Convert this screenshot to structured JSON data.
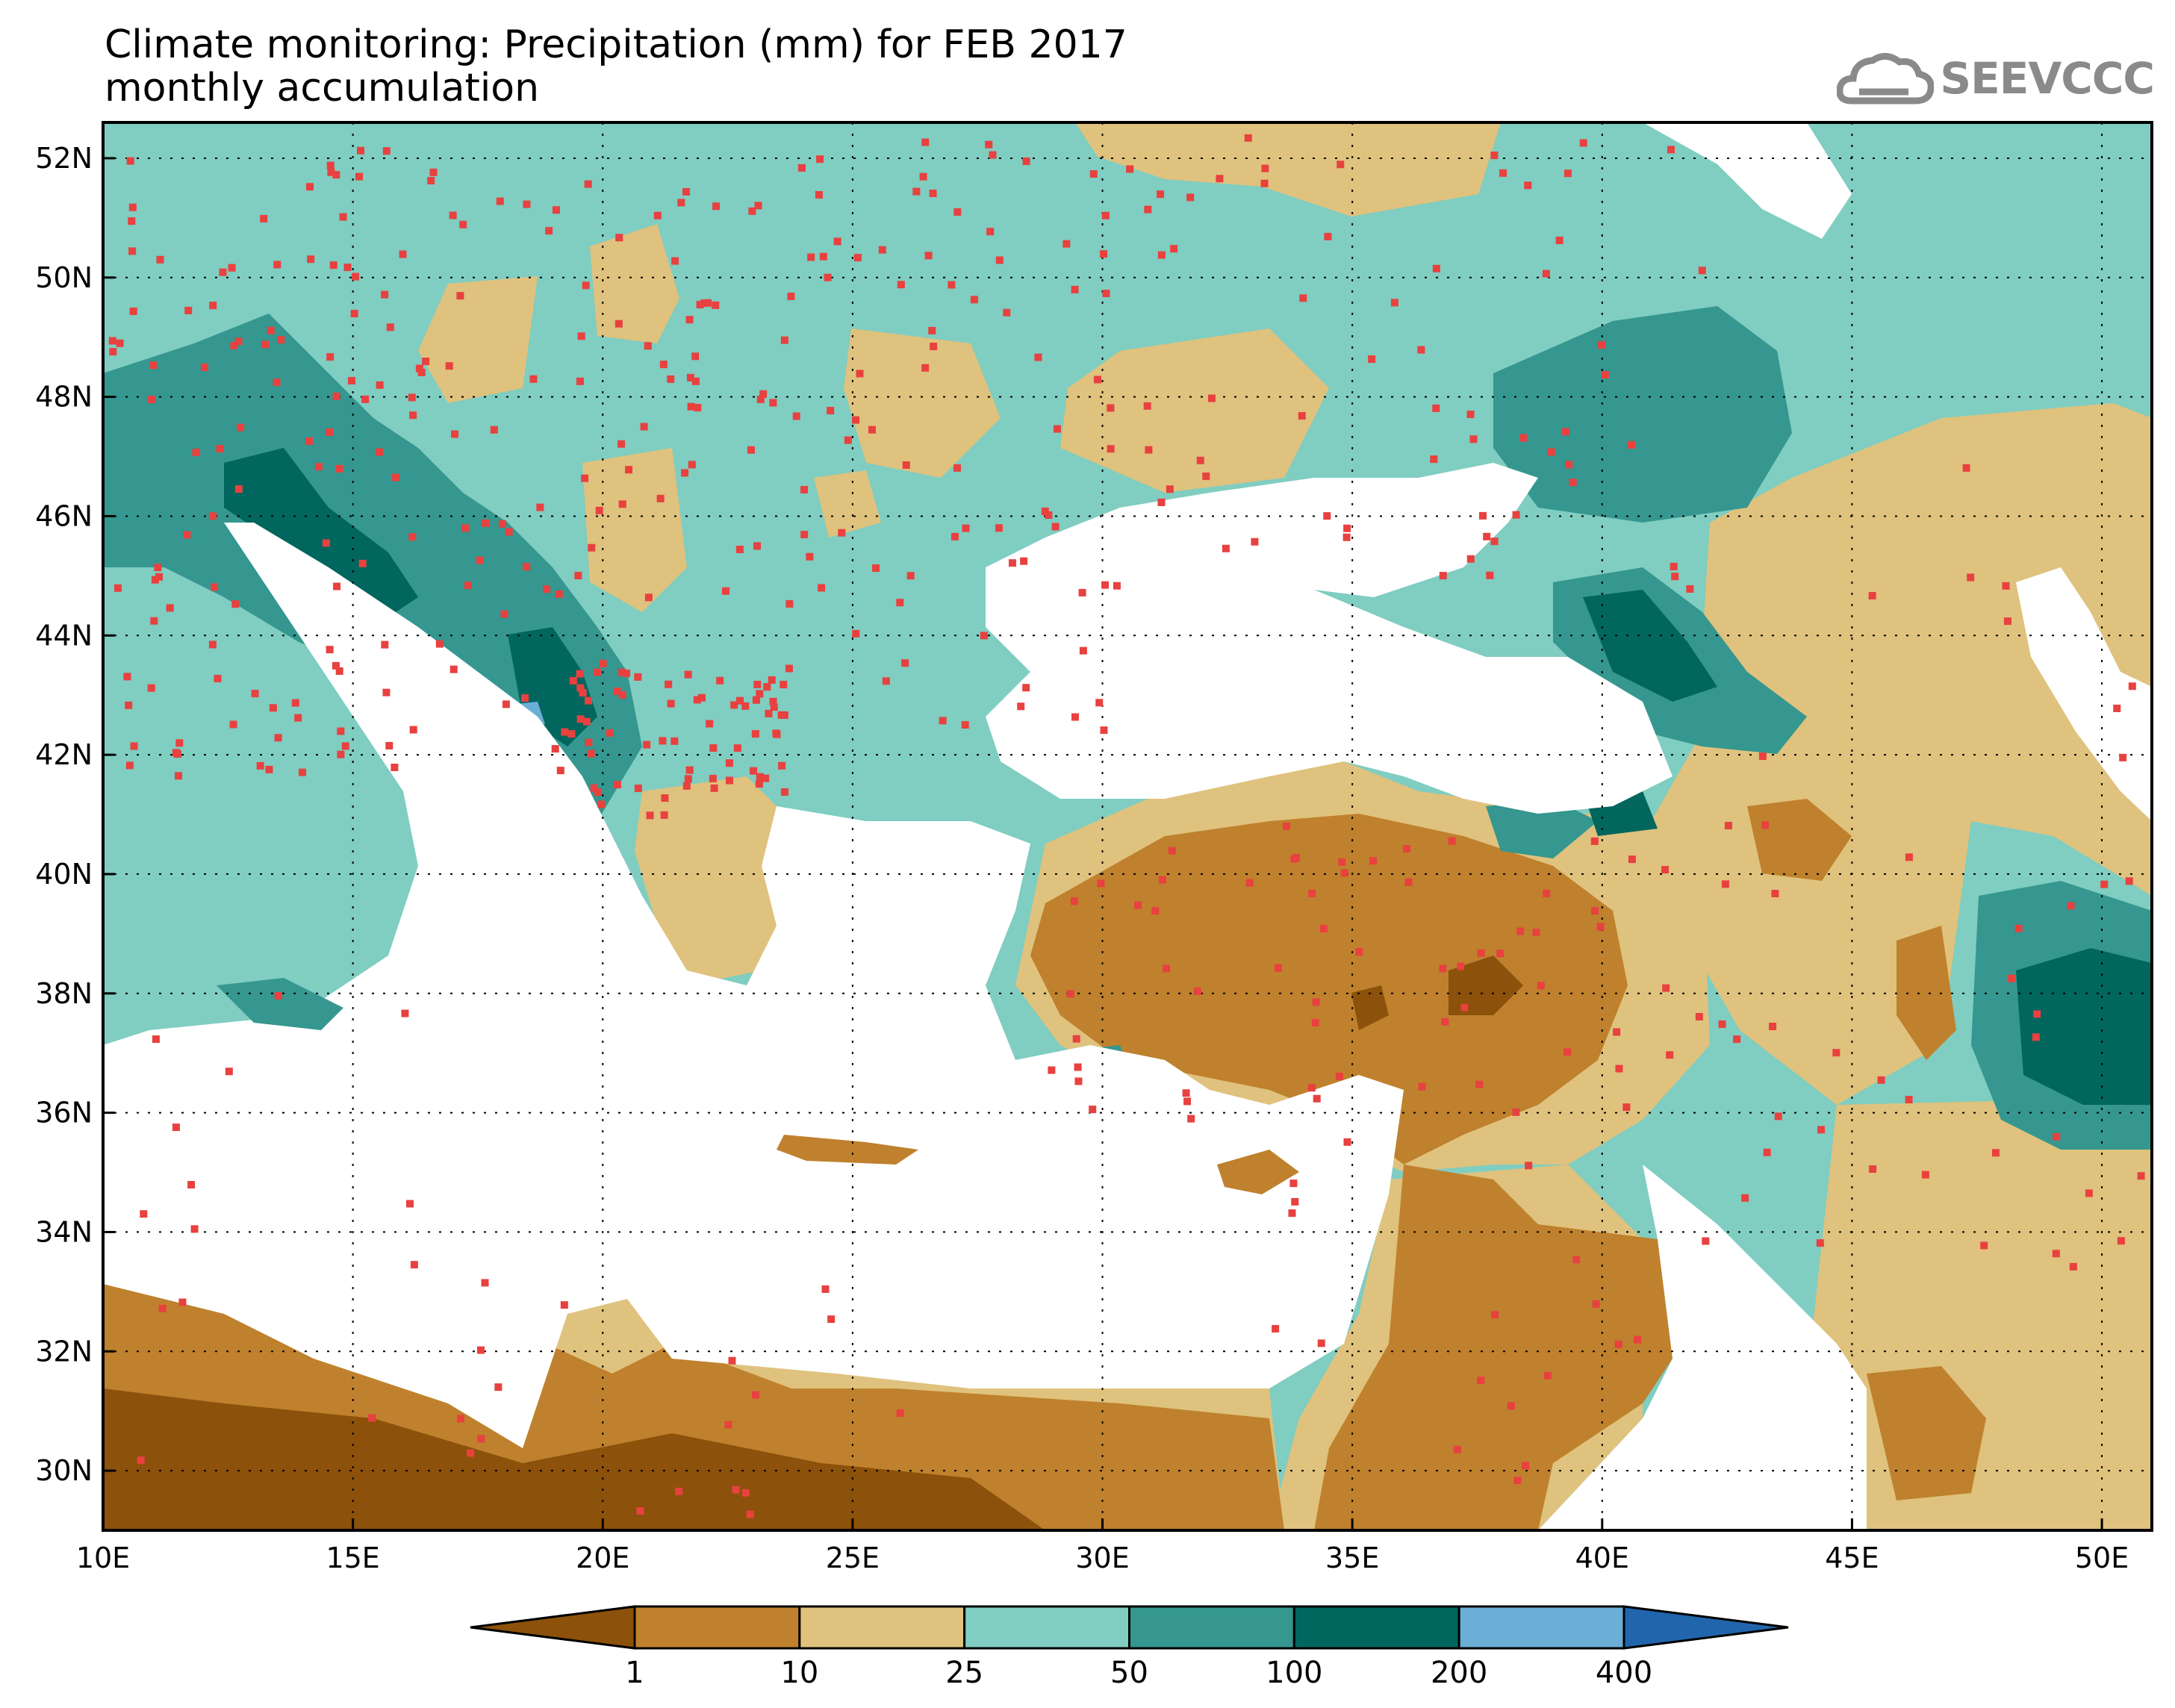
{
  "title": {
    "line1": "Climate monitoring: Precipitation (mm) for FEB 2017",
    "line2": "monthly accumulation"
  },
  "logo": {
    "text": "SEEVCCC",
    "icon": "cloud-icon"
  },
  "axes": {
    "lat_ticks": [
      "52N",
      "50N",
      "48N",
      "46N",
      "44N",
      "42N",
      "40N",
      "38N",
      "36N",
      "34N",
      "32N",
      "30N"
    ],
    "lon_ticks": [
      "10E",
      "15E",
      "20E",
      "25E",
      "30E",
      "35E",
      "40E",
      "45E",
      "50E"
    ]
  },
  "colorbar": {
    "thresholds": [
      "1",
      "10",
      "25",
      "50",
      "100",
      "200",
      "400"
    ],
    "colors": [
      "#8c510a",
      "#bf812d",
      "#dfc27d",
      "#80cdc1",
      "#35978f",
      "#01665e",
      "#6baed6",
      "#2166ac"
    ]
  },
  "colors": {
    "station_marker": "#e8413f",
    "sea": "#ffffff",
    "border": "#000000"
  }
}
